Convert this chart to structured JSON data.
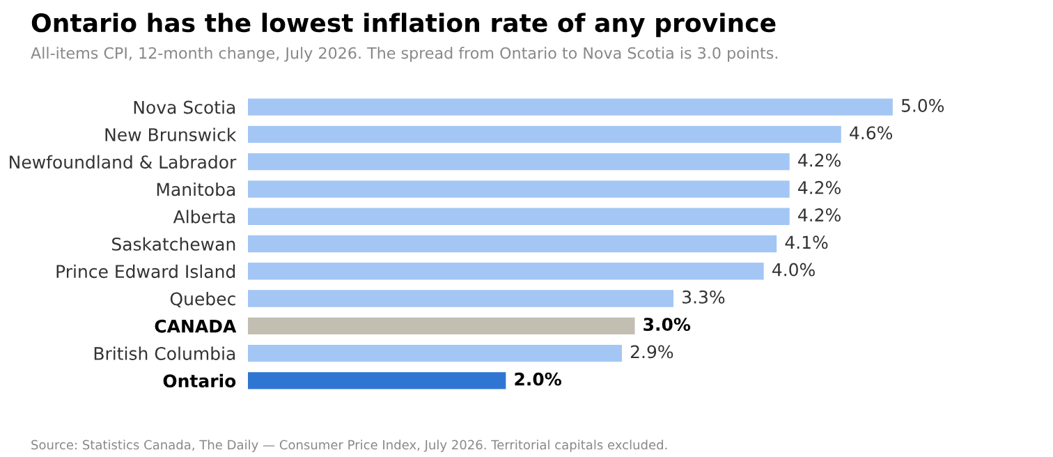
{
  "chart_data": {
    "type": "bar",
    "orientation": "horizontal",
    "title": "Ontario has the lowest inflation rate of any province",
    "subtitle": "All-items CPI, 12-month change, July 2026. The spread from Ontario to Nova Scotia is 3.0 points.",
    "categories": [
      "Nova Scotia",
      "New Brunswick",
      "Newfoundland & Labrador",
      "Manitoba",
      "Alberta",
      "Saskatchewan",
      "Prince Edward Island",
      "Quebec",
      "CANADA",
      "British Columbia",
      "Ontario"
    ],
    "values": [
      5.0,
      4.6,
      4.2,
      4.2,
      4.2,
      4.1,
      4.0,
      3.3,
      3.0,
      2.9,
      2.0
    ],
    "colors": [
      "#a3c6f4",
      "#a3c6f4",
      "#a3c6f4",
      "#a3c6f4",
      "#a3c6f4",
      "#a3c6f4",
      "#a3c6f4",
      "#a3c6f4",
      "#c2beb2",
      "#a3c6f4",
      "#2f76d2"
    ],
    "value_labels": [
      "5.0%",
      "4.6%",
      "4.2%",
      "4.2%",
      "4.2%",
      "4.1%",
      "4.0%",
      "3.3%",
      "3.0%",
      "2.9%",
      "2.0%"
    ],
    "annotations": [
      "Source: Statistics Canada, The Daily — Consumer Price Index, July 2026. Territorial capitals excluded."
    ],
    "grid": false,
    "legend": false
  }
}
